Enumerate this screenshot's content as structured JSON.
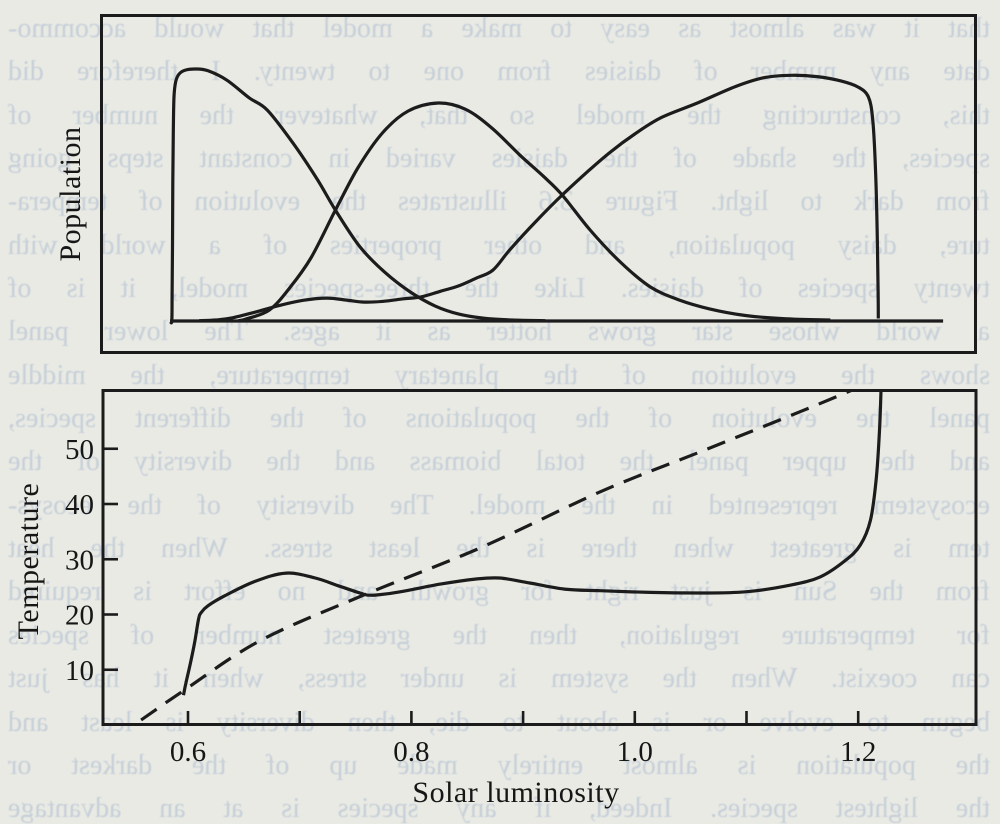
{
  "page": {
    "background_color": "#e9eae4",
    "ink_color": "#1b1b1b",
    "showthrough_color": "#c6cfd8"
  },
  "ghost_text": {
    "lines": [
      "that it was almost as easy to make a model that would accommo-",
      "date any number of daisies from one to twenty. I therefore did",
      "this, constructing the model so that, whatever the number of",
      "species, the shade of the daisies varied in constant steps going",
      "from dark to light. Figure 3.6 illustrates the evolution of tempera-",
      "ture, daisy population, and other properties of a world with",
      "twenty species of daisies. Like the three-species model, it is of",
      "a world whose star grows hotter as it ages. The lower panel",
      "shows the evolution of the planetary temperature, the middle",
      "panel the evolution of the populations of the different species,",
      "and the upper panel the total biomass and the diversity of the",
      "ecosystem represented in the model. The diversity of the ecosys-",
      "tem is greatest when there is the least stress. When the heat",
      "from the Sun is just right for growth and no effort is required",
      "for temperature regulation, then the greatest number of species",
      "can coexist. When the system is under stress, when it has just",
      "begun to evolve or is about to die, then diversity is least and",
      "the population is almost entirely made up of the darkest or",
      "the lightest species. Indeed, if any species is at an advantage"
    ]
  },
  "figure": {
    "population_label": "Population",
    "temperature_label": "Temperature",
    "x_axis_label": "Solar luminosity"
  },
  "chart_data": [
    {
      "type": "line",
      "panel": "top",
      "ylabel": "Population",
      "xlabel": "",
      "x_range": [
        0.52,
        1.3
      ],
      "y_range": [
        0,
        1.05
      ],
      "grid": false,
      "legend": "none",
      "series": [
        {
          "name": "population-baseline",
          "points": [
            [
              0.584,
              0
            ],
            [
              1.276,
              0
            ]
          ]
        },
        {
          "name": "darkest-species-population",
          "points": [
            [
              0.584,
              0
            ],
            [
              0.5855,
              0.0
            ],
            [
              0.5858,
              0.1
            ],
            [
              0.5861,
              0.3
            ],
            [
              0.5864,
              0.55
            ],
            [
              0.5868,
              0.75
            ],
            [
              0.5875,
              0.89
            ],
            [
              0.589,
              0.95
            ],
            [
              0.592,
              0.98
            ],
            [
              0.598,
              0.996
            ],
            [
              0.607,
              1.0
            ],
            [
              0.618,
              0.993
            ],
            [
              0.635,
              0.955
            ],
            [
              0.655,
              0.885
            ],
            [
              0.671,
              0.837
            ],
            [
              0.694,
              0.706
            ],
            [
              0.716,
              0.56
            ],
            [
              0.732,
              0.44
            ],
            [
              0.754,
              0.294
            ],
            [
              0.776,
              0.194
            ],
            [
              0.799,
              0.115
            ],
            [
              0.821,
              0.06
            ],
            [
              0.842,
              0.028
            ],
            [
              0.865,
              0.011
            ],
            [
              0.89,
              0.004
            ],
            [
              0.92,
              0.001
            ]
          ]
        },
        {
          "name": "mid-shade-species-population",
          "points": [
            [
              0.645,
              0.001
            ],
            [
              0.652,
              0.008
            ],
            [
              0.673,
              0.044
            ],
            [
              0.691,
              0.131
            ],
            [
              0.71,
              0.25
            ],
            [
              0.732,
              0.44
            ],
            [
              0.752,
              0.607
            ],
            [
              0.774,
              0.746
            ],
            [
              0.797,
              0.833
            ],
            [
              0.824,
              0.865
            ],
            [
              0.848,
              0.841
            ],
            [
              0.872,
              0.766
            ],
            [
              0.897,
              0.659
            ],
            [
              0.918,
              0.575
            ],
            [
              0.935,
              0.5
            ],
            [
              0.96,
              0.361
            ],
            [
              0.987,
              0.234
            ],
            [
              1.014,
              0.135
            ],
            [
              1.04,
              0.083
            ],
            [
              1.067,
              0.048
            ],
            [
              1.099,
              0.022
            ],
            [
              1.134,
              0.009
            ],
            [
              1.175,
              0.004
            ]
          ]
        },
        {
          "name": "lightest-species-population",
          "points": [
            [
              0.61,
              0.001
            ],
            [
              0.625,
              0.004
            ],
            [
              0.639,
              0.012
            ],
            [
              0.66,
              0.035
            ],
            [
              0.682,
              0.062
            ],
            [
              0.703,
              0.082
            ],
            [
              0.724,
              0.091
            ],
            [
              0.742,
              0.083
            ],
            [
              0.758,
              0.075
            ],
            [
              0.775,
              0.078
            ],
            [
              0.793,
              0.088
            ],
            [
              0.808,
              0.095
            ],
            [
              0.826,
              0.118
            ],
            [
              0.842,
              0.139
            ],
            [
              0.858,
              0.17
            ],
            [
              0.873,
              0.202
            ],
            [
              0.888,
              0.282
            ],
            [
              0.911,
              0.393
            ],
            [
              0.935,
              0.5
            ],
            [
              0.958,
              0.594
            ],
            [
              0.978,
              0.67
            ],
            [
              1.0,
              0.742
            ],
            [
              1.023,
              0.806
            ],
            [
              1.056,
              0.865
            ],
            [
              1.09,
              0.93
            ],
            [
              1.115,
              0.965
            ],
            [
              1.14,
              0.975
            ],
            [
              1.163,
              0.97
            ],
            [
              1.185,
              0.952
            ],
            [
              1.2,
              0.928
            ],
            [
              1.209,
              0.89
            ],
            [
              1.213,
              0.8
            ],
            [
              1.2155,
              0.6
            ],
            [
              1.217,
              0.35
            ],
            [
              1.2178,
              0.12
            ],
            [
              1.218,
              0.01
            ]
          ]
        }
      ]
    },
    {
      "type": "line",
      "panel": "bottom",
      "ylabel": "Temperature",
      "xlabel": "Solar luminosity",
      "x_range": [
        0.52,
        1.3
      ],
      "y_range": [
        0,
        60.5
      ],
      "grid": false,
      "legend": "none",
      "x_ticks": [
        0.6,
        0.7,
        0.8,
        0.9,
        1.0,
        1.1,
        1.2
      ],
      "x_tick_labels": [
        {
          "value": 0.6,
          "label": "0.6"
        },
        {
          "value": 0.8,
          "label": "0.8"
        },
        {
          "value": 1.0,
          "label": "1.0"
        },
        {
          "value": 1.2,
          "label": "1.2"
        }
      ],
      "y_tick_labels": [
        {
          "value": 50,
          "label": "50"
        },
        {
          "value": 40,
          "label": "40"
        },
        {
          "value": 30,
          "label": "30"
        },
        {
          "value": 20,
          "label": "20"
        },
        {
          "value": 10,
          "label": "10"
        }
      ],
      "series": [
        {
          "name": "temperature-with-life",
          "style": "solid",
          "points": [
            [
              0.596,
              5.4
            ],
            [
              0.598,
              7.5
            ],
            [
              0.602,
              11.0
            ],
            [
              0.606,
              15.0
            ],
            [
              0.6095,
              19.2
            ],
            [
              0.612,
              20.4
            ],
            [
              0.618,
              21.6
            ],
            [
              0.633,
              23.4
            ],
            [
              0.66,
              26.0
            ],
            [
              0.688,
              27.5
            ],
            [
              0.714,
              26.6
            ],
            [
              0.736,
              25.1
            ],
            [
              0.757,
              23.7
            ],
            [
              0.763,
              23.5
            ],
            [
              0.772,
              23.6
            ],
            [
              0.79,
              24.1
            ],
            [
              0.826,
              25.5
            ],
            [
              0.857,
              26.4
            ],
            [
              0.879,
              26.6
            ],
            [
              0.906,
              25.7
            ],
            [
              0.937,
              24.6
            ],
            [
              0.969,
              24.3
            ],
            [
              1.014,
              24.0
            ],
            [
              1.058,
              23.9
            ],
            [
              1.099,
              24.1
            ],
            [
              1.139,
              25.3
            ],
            [
              1.166,
              26.8
            ],
            [
              1.188,
              29.7
            ],
            [
              1.202,
              32.6
            ],
            [
              1.211,
              37.1
            ],
            [
              1.216,
              44.3
            ],
            [
              1.219,
              53.0
            ],
            [
              1.2205,
              61.0
            ]
          ]
        },
        {
          "name": "barren-planet-temperature",
          "style": "dashed",
          "points": [
            [
              0.558,
              0.9
            ],
            [
              0.596,
              6.2
            ],
            [
              0.664,
              15.2
            ],
            [
              0.757,
              23.5
            ],
            [
              0.861,
              32.0
            ],
            [
              0.969,
              42.2
            ],
            [
              1.058,
              49.4
            ],
            [
              1.148,
              56.7
            ],
            [
              1.199,
              61.0
            ]
          ]
        }
      ]
    }
  ]
}
